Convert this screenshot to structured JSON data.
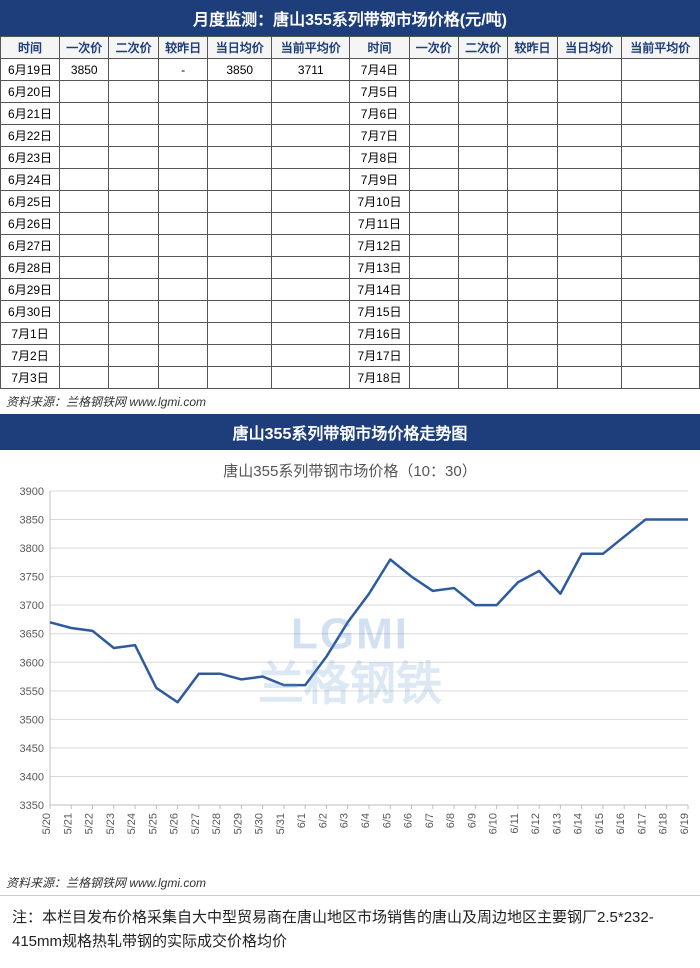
{
  "header_title": "月度监测：唐山355系列带钢市场价格(元/吨)",
  "table": {
    "columns": [
      "时间",
      "一次价",
      "二次价",
      "较昨日",
      "当日均价",
      "当前平均价",
      "时间",
      "一次价",
      "二次价",
      "较昨日",
      "当日均价",
      "当前平均价"
    ],
    "rows": [
      [
        "6月19日",
        "3850",
        "",
        "-",
        "3850",
        "3711",
        "7月4日",
        "",
        "",
        "",
        "",
        ""
      ],
      [
        "6月20日",
        "",
        "",
        "",
        "",
        "",
        "7月5日",
        "",
        "",
        "",
        "",
        ""
      ],
      [
        "6月21日",
        "",
        "",
        "",
        "",
        "",
        "7月6日",
        "",
        "",
        "",
        "",
        ""
      ],
      [
        "6月22日",
        "",
        "",
        "",
        "",
        "",
        "7月7日",
        "",
        "",
        "",
        "",
        ""
      ],
      [
        "6月23日",
        "",
        "",
        "",
        "",
        "",
        "7月8日",
        "",
        "",
        "",
        "",
        ""
      ],
      [
        "6月24日",
        "",
        "",
        "",
        "",
        "",
        "7月9日",
        "",
        "",
        "",
        "",
        ""
      ],
      [
        "6月25日",
        "",
        "",
        "",
        "",
        "",
        "7月10日",
        "",
        "",
        "",
        "",
        ""
      ],
      [
        "6月26日",
        "",
        "",
        "",
        "",
        "",
        "7月11日",
        "",
        "",
        "",
        "",
        ""
      ],
      [
        "6月27日",
        "",
        "",
        "",
        "",
        "",
        "7月12日",
        "",
        "",
        "",
        "",
        ""
      ],
      [
        "6月28日",
        "",
        "",
        "",
        "",
        "",
        "7月13日",
        "",
        "",
        "",
        "",
        ""
      ],
      [
        "6月29日",
        "",
        "",
        "",
        "",
        "",
        "7月14日",
        "",
        "",
        "",
        "",
        ""
      ],
      [
        "6月30日",
        "",
        "",
        "",
        "",
        "",
        "7月15日",
        "",
        "",
        "",
        "",
        ""
      ],
      [
        "7月1日",
        "",
        "",
        "",
        "",
        "",
        "7月16日",
        "",
        "",
        "",
        "",
        ""
      ],
      [
        "7月2日",
        "",
        "",
        "",
        "",
        "",
        "7月17日",
        "",
        "",
        "",
        "",
        ""
      ],
      [
        "7月3日",
        "",
        "",
        "",
        "",
        "",
        "7月18日",
        "",
        "",
        "",
        "",
        ""
      ]
    ]
  },
  "source_text": "资料来源：兰格钢铁网 www.lgmi.com",
  "chart_header": "唐山355系列带钢市场价格走势图",
  "chart": {
    "type": "line",
    "title": "唐山355系列带钢市场价格（10：30）",
    "x_labels": [
      "5/20",
      "5/21",
      "5/22",
      "5/23",
      "5/24",
      "5/25",
      "5/26",
      "5/27",
      "5/28",
      "5/29",
      "5/30",
      "5/31",
      "6/1",
      "6/2",
      "6/3",
      "6/4",
      "6/5",
      "6/6",
      "6/7",
      "6/8",
      "6/9",
      "6/10",
      "6/11",
      "6/12",
      "6/13",
      "6/14",
      "6/15",
      "6/16",
      "6/17",
      "6/18",
      "6/19"
    ],
    "values": [
      3670,
      3660,
      3655,
      3625,
      3630,
      3555,
      3530,
      3580,
      3580,
      3570,
      3575,
      3560,
      3560,
      3610,
      3670,
      3720,
      3780,
      3750,
      3725,
      3730,
      3700,
      3700,
      3740,
      3760,
      3720,
      3790,
      3790,
      3820,
      3850,
      3850,
      3850
    ],
    "ylim": [
      3350,
      3900
    ],
    "ytick_step": 50,
    "line_color": "#2e5a9e",
    "line_width": 2.5,
    "grid_color": "#d9d9d9",
    "background_color": "#ffffff",
    "axis_color": "#bfbfbf",
    "label_color": "#595959",
    "label_fontsize": 11,
    "title_fontsize": 15,
    "title_color": "#555555",
    "x_label_rotation": -90
  },
  "watermark_top": "LGMI",
  "watermark_bottom": "兰格钢铁",
  "footnote": "注：本栏目发布价格采集自大中型贸易商在唐山地区市场销售的唐山及周边地区主要钢厂2.5*232-415mm规格热轧带钢的实际成交价格均价"
}
